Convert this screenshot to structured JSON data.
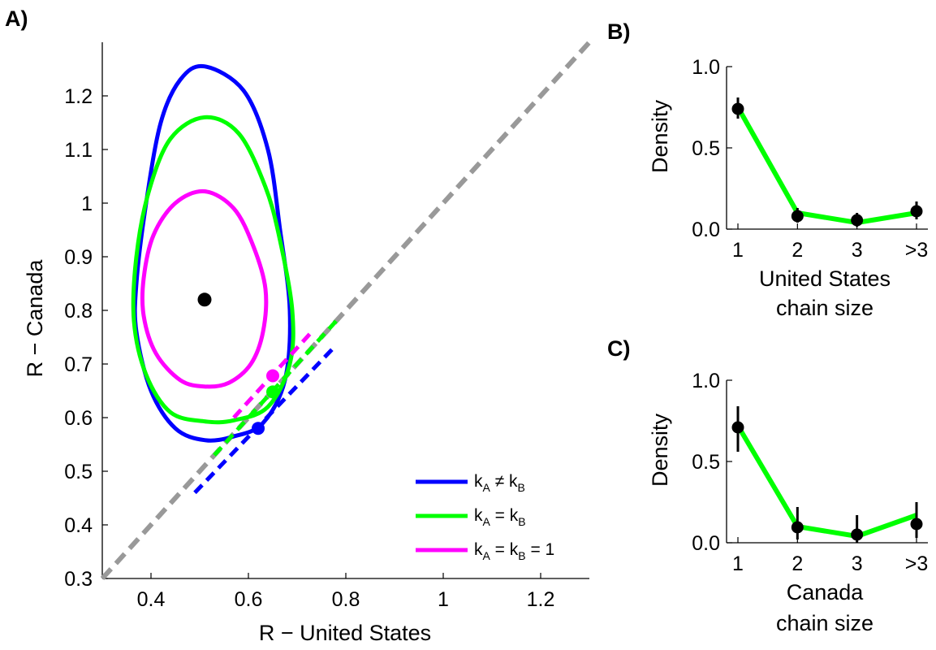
{
  "panels": {
    "A": {
      "label": "A)",
      "chart_data": {
        "type": "scatter",
        "xlabel": "R − United States",
        "ylabel": "R − Canada",
        "xlim": [
          0.3,
          1.3
        ],
        "ylim": [
          0.3,
          1.3
        ],
        "xticks": [
          0.4,
          0.6,
          0.8,
          1,
          1.2
        ],
        "xtick_labels": [
          "0.4",
          "0.6",
          "0.8",
          "1",
          "1.2"
        ],
        "yticks": [
          0.3,
          0.4,
          0.5,
          0.6,
          0.7,
          0.8,
          0.9,
          1,
          1.1,
          1.2
        ],
        "ytick_labels": [
          "0.3",
          "0.4",
          "0.5",
          "0.6",
          "0.7",
          "0.8",
          "0.9",
          "1",
          "1.1",
          "1.2"
        ],
        "point_estimate": {
          "x": 0.51,
          "y": 0.82,
          "color": "#000000"
        },
        "diagonal": {
          "from": [
            0.3,
            0.3
          ],
          "to": [
            1.3,
            1.3
          ],
          "color": "#999999"
        },
        "series": [
          {
            "name": "k_A ≠ k_B",
            "color": "#0000ff",
            "contour": [
              [
                0.51,
                1.255
              ],
              [
                0.59,
                1.21
              ],
              [
                0.64,
                1.1
              ],
              [
                0.665,
                0.95
              ],
              [
                0.685,
                0.8
              ],
              [
                0.675,
                0.67
              ],
              [
                0.63,
                0.59
              ],
              [
                0.57,
                0.565
              ],
              [
                0.51,
                0.558
              ],
              [
                0.45,
                0.58
              ],
              [
                0.4,
                0.65
              ],
              [
                0.37,
                0.76
              ],
              [
                0.37,
                0.85
              ],
              [
                0.39,
                1.0
              ],
              [
                0.42,
                1.15
              ],
              [
                0.46,
                1.23
              ]
            ],
            "marker": {
              "x": 0.62,
              "y": 0.58
            },
            "tangent": [
              [
                0.49,
                0.46
              ],
              [
                0.78,
                0.735
              ]
            ]
          },
          {
            "name": "k_A = k_B",
            "color": "#00ff00",
            "contour": [
              [
                0.51,
                1.16
              ],
              [
                0.58,
                1.13
              ],
              [
                0.635,
                1.03
              ],
              [
                0.665,
                0.93
              ],
              [
                0.69,
                0.8
              ],
              [
                0.685,
                0.7
              ],
              [
                0.64,
                0.62
              ],
              [
                0.57,
                0.595
              ],
              [
                0.51,
                0.593
              ],
              [
                0.44,
                0.61
              ],
              [
                0.39,
                0.68
              ],
              [
                0.365,
                0.78
              ],
              [
                0.37,
                0.9
              ],
              [
                0.395,
                1.02
              ],
              [
                0.44,
                1.12
              ]
            ],
            "marker": {
              "x": 0.65,
              "y": 0.648
            },
            "tangent": [
              [
                0.53,
                0.53
              ],
              [
                0.78,
                0.78
              ]
            ]
          },
          {
            "name": "k_A = k_B = 1",
            "color": "#ff00ff",
            "contour": [
              [
                0.51,
                1.022
              ],
              [
                0.57,
                0.99
              ],
              [
                0.61,
                0.92
              ],
              [
                0.635,
                0.84
              ],
              [
                0.63,
                0.76
              ],
              [
                0.605,
                0.7
              ],
              [
                0.56,
                0.665
              ],
              [
                0.51,
                0.658
              ],
              [
                0.46,
                0.67
              ],
              [
                0.41,
                0.72
              ],
              [
                0.385,
                0.79
              ],
              [
                0.385,
                0.86
              ],
              [
                0.405,
                0.94
              ],
              [
                0.45,
                1.0
              ]
            ],
            "marker": {
              "x": 0.65,
              "y": 0.678
            },
            "tangent": [
              [
                0.57,
                0.6
              ],
              [
                0.73,
                0.76
              ]
            ]
          }
        ],
        "legend_placement": "bottom-right",
        "legend": [
          {
            "pre": "k",
            "sub1": "A",
            "op": " ≠ k",
            "sub2": "B",
            "post": "",
            "color": "#0000ff"
          },
          {
            "pre": "k",
            "sub1": "A",
            "op": " = k",
            "sub2": "B",
            "post": "",
            "color": "#00ff00"
          },
          {
            "pre": "k",
            "sub1": "A",
            "op": " = k",
            "sub2": "B",
            "post": " = 1",
            "color": "#ff00ff"
          }
        ]
      }
    },
    "B": {
      "label": "B)",
      "chart_data": {
        "type": "line",
        "categories": [
          "1",
          "2",
          "3",
          ">3"
        ],
        "line_values": [
          0.75,
          0.1,
          0.04,
          0.1
        ],
        "points": [
          0.74,
          0.08,
          0.055,
          0.11
        ],
        "error_low": [
          0.68,
          0.04,
          0.015,
          0.06
        ],
        "error_high": [
          0.81,
          0.13,
          0.1,
          0.17
        ],
        "ylim": [
          0,
          1
        ],
        "yticks": [
          0,
          0.5,
          1
        ],
        "ytick_labels": [
          "0.0",
          "0.5",
          "1.0"
        ],
        "ylabel": "Density",
        "xlabel_lines": [
          "United States",
          "chain size"
        ],
        "line_color": "#00ff00"
      }
    },
    "C": {
      "label": "C)",
      "chart_data": {
        "type": "line",
        "categories": [
          "1",
          "2",
          "3",
          ">3"
        ],
        "line_values": [
          0.72,
          0.1,
          0.04,
          0.17
        ],
        "points": [
          0.71,
          0.095,
          0.05,
          0.115
        ],
        "error_low": [
          0.56,
          0.02,
          0.0,
          0.03
        ],
        "error_high": [
          0.84,
          0.22,
          0.17,
          0.25
        ],
        "ylim": [
          0,
          1
        ],
        "yticks": [
          0,
          0.5,
          1
        ],
        "ytick_labels": [
          "0.0",
          "0.5",
          "1.0"
        ],
        "ylabel": "Density",
        "xlabel_lines": [
          "Canada",
          "chain size"
        ],
        "line_color": "#00ff00"
      }
    }
  }
}
